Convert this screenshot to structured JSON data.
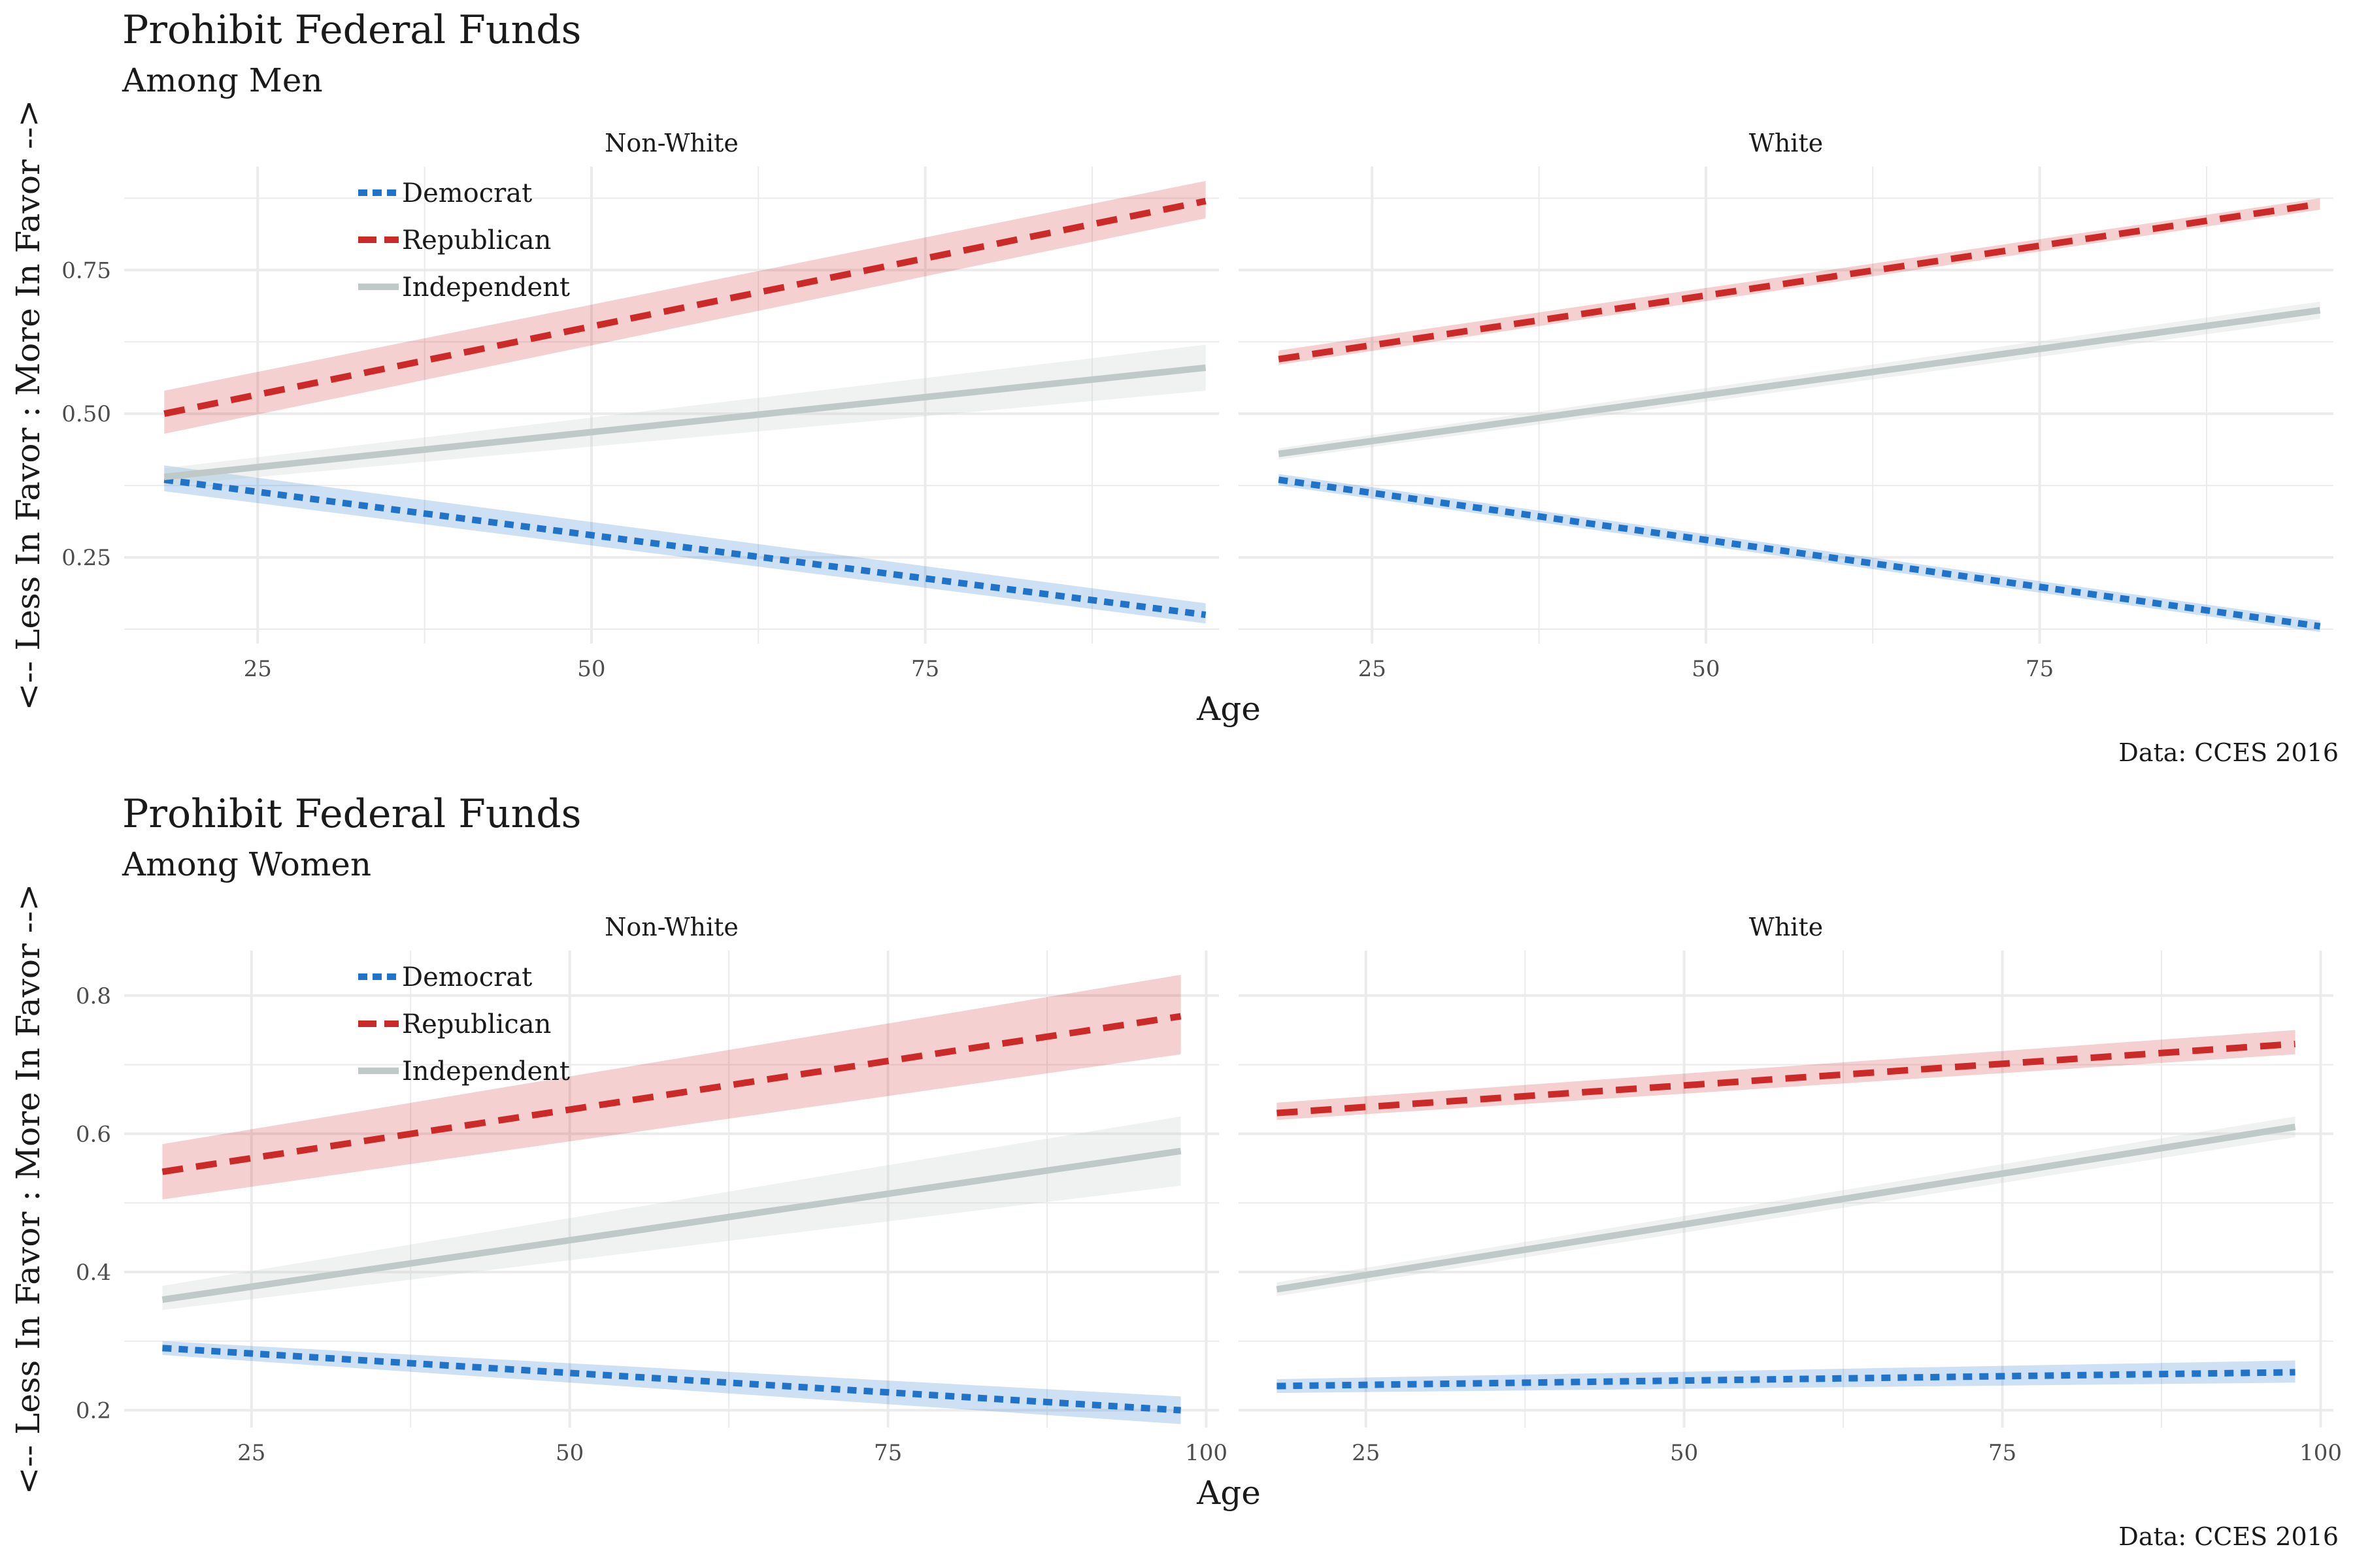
{
  "chart_data": [
    {
      "type": "line",
      "title": "Prohibit Federal Funds",
      "subtitle": "Among Men",
      "xlabel": "Age",
      "ylabel": "<-- Less In Favor : More In Favor -->",
      "caption": "Data: CCES 2016",
      "xlim": [
        15,
        97
      ],
      "ylim": [
        0.1,
        0.93
      ],
      "x_ticks": [
        25,
        50,
        75
      ],
      "y_ticks": [
        0.25,
        0.5,
        0.75
      ],
      "legend_position": "top-left",
      "grid": true,
      "panels": [
        {
          "name": "Non-White",
          "series": [
            {
              "name": "Democrat",
              "x": [
                18,
                96
              ],
              "y": [
                0.385,
                0.15
              ],
              "ci_lower": [
                0.365,
                0.135
              ],
              "ci_upper": [
                0.41,
                0.17
              ]
            },
            {
              "name": "Republican",
              "x": [
                18,
                96
              ],
              "y": [
                0.5,
                0.87
              ],
              "ci_lower": [
                0.465,
                0.84
              ],
              "ci_upper": [
                0.54,
                0.905
              ]
            },
            {
              "name": "Independent",
              "x": [
                18,
                96
              ],
              "y": [
                0.39,
                0.58
              ],
              "ci_lower": [
                0.375,
                0.54
              ],
              "ci_upper": [
                0.405,
                0.62
              ]
            }
          ]
        },
        {
          "name": "White",
          "series": [
            {
              "name": "Democrat",
              "x": [
                18,
                96
              ],
              "y": [
                0.385,
                0.13
              ],
              "ci_lower": [
                0.375,
                0.12
              ],
              "ci_upper": [
                0.395,
                0.14
              ]
            },
            {
              "name": "Republican",
              "x": [
                18,
                96
              ],
              "y": [
                0.595,
                0.865
              ],
              "ci_lower": [
                0.585,
                0.855
              ],
              "ci_upper": [
                0.61,
                0.875
              ]
            },
            {
              "name": "Independent",
              "x": [
                18,
                96
              ],
              "y": [
                0.43,
                0.68
              ],
              "ci_lower": [
                0.42,
                0.665
              ],
              "ci_upper": [
                0.44,
                0.695
              ]
            }
          ]
        }
      ]
    },
    {
      "type": "line",
      "title": "Prohibit Federal Funds",
      "subtitle": "Among Women",
      "xlabel": "Age",
      "ylabel": "<-- Less In Favor : More In Favor -->",
      "caption": "Data: CCES 2016",
      "xlim": [
        15,
        101
      ],
      "ylim": [
        0.175,
        0.865
      ],
      "x_ticks": [
        25,
        50,
        75,
        100
      ],
      "y_ticks": [
        0.2,
        0.4,
        0.6,
        0.8
      ],
      "legend_position": "top-left",
      "grid": true,
      "panels": [
        {
          "name": "Non-White",
          "series": [
            {
              "name": "Democrat",
              "x": [
                18,
                98
              ],
              "y": [
                0.29,
                0.2
              ],
              "ci_lower": [
                0.28,
                0.18
              ],
              "ci_upper": [
                0.3,
                0.22
              ]
            },
            {
              "name": "Republican",
              "x": [
                18,
                98
              ],
              "y": [
                0.545,
                0.77
              ],
              "ci_lower": [
                0.505,
                0.715
              ],
              "ci_upper": [
                0.585,
                0.83
              ]
            },
            {
              "name": "Independent",
              "x": [
                18,
                98
              ],
              "y": [
                0.36,
                0.575
              ],
              "ci_lower": [
                0.345,
                0.525
              ],
              "ci_upper": [
                0.38,
                0.625
              ]
            }
          ]
        },
        {
          "name": "White",
          "series": [
            {
              "name": "Democrat",
              "x": [
                18,
                98
              ],
              "y": [
                0.235,
                0.255
              ],
              "ci_lower": [
                0.225,
                0.24
              ],
              "ci_upper": [
                0.245,
                0.272
              ]
            },
            {
              "name": "Republican",
              "x": [
                18,
                98
              ],
              "y": [
                0.63,
                0.73
              ],
              "ci_lower": [
                0.62,
                0.715
              ],
              "ci_upper": [
                0.645,
                0.75
              ]
            },
            {
              "name": "Independent",
              "x": [
                18,
                98
              ],
              "y": [
                0.375,
                0.61
              ],
              "ci_lower": [
                0.365,
                0.595
              ],
              "ci_upper": [
                0.385,
                0.625
              ]
            }
          ]
        }
      ]
    }
  ],
  "colors": {
    "Democrat": "#1f73c9",
    "Republican": "#cc2a28",
    "Independent": "#bfcac8",
    "grid": "#ebebeb"
  }
}
